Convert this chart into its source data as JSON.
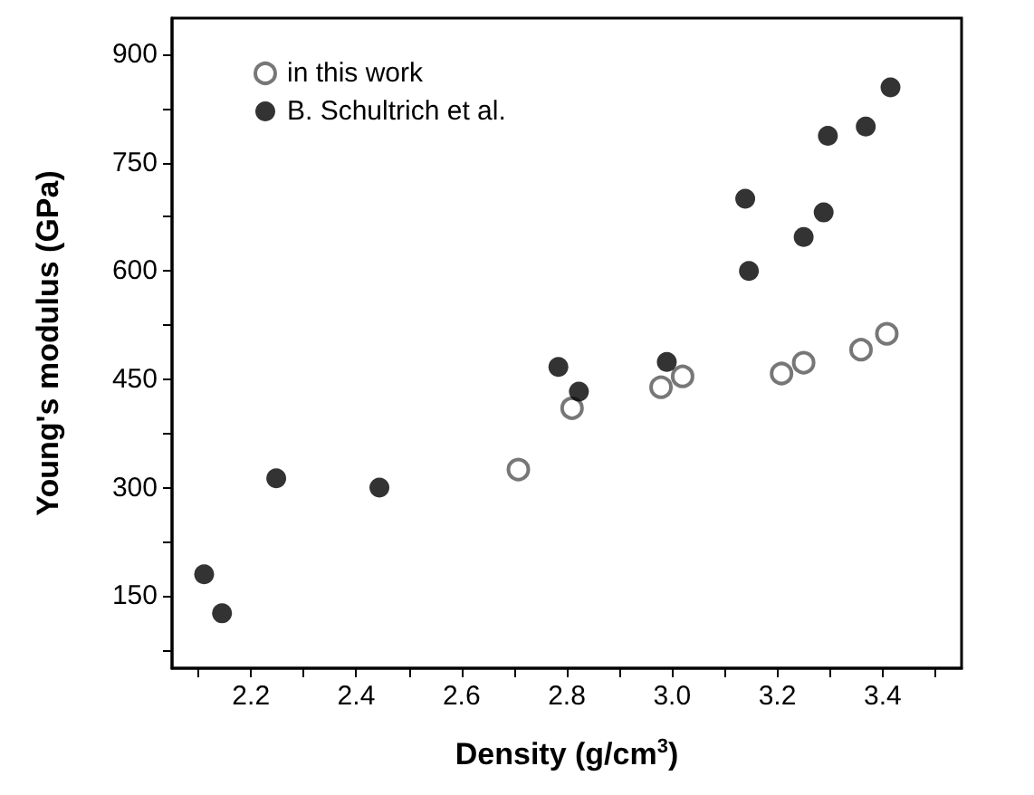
{
  "chart_data": {
    "type": "scatter",
    "xlabel": "Density (g/cm$^{3}$)",
    "ylabel": "Young's modulus (GPa)",
    "xlim": [
      2.05,
      3.55
    ],
    "ylim": [
      50,
      950
    ],
    "xticks": [
      {
        "value": 2.1,
        "label": null
      },
      2.2,
      {
        "value": 2.3,
        "label": null
      },
      2.4,
      {
        "value": 2.5,
        "label": null
      },
      2.6,
      {
        "value": 2.7,
        "label": null
      },
      2.8,
      {
        "value": 2.9,
        "label": null
      },
      "3.0",
      {
        "value": 3.1,
        "label": null
      },
      3.2,
      {
        "value": 3.3,
        "label": null
      },
      3.4,
      {
        "value": 3.5,
        "label": null
      }
    ],
    "yticks": [
      {
        "value": 75,
        "label": null
      },
      150,
      {
        "value": 225,
        "label": null
      },
      300,
      {
        "value": 375,
        "label": null
      },
      450,
      {
        "value": 525,
        "label": null
      },
      600,
      {
        "value": 675,
        "label": null
      },
      750,
      {
        "value": 825,
        "label": null
      },
      900
    ],
    "grid": false,
    "legend": "top left",
    "marker": "circle",
    "series": [
      {
        "name": "in this work",
        "color": "#555555",
        "marker": "empty circle",
        "x": [
          2.708,
          2.81,
          2.979,
          3.02,
          3.208,
          3.25,
          3.359,
          3.408
        ],
        "values": [
          325,
          410,
          439,
          454,
          458,
          473,
          491,
          513
        ]
      },
      {
        "name": "B. Schultrich et al.",
        "color": "#000000",
        "x": [
          2.111,
          2.145,
          2.248,
          2.444,
          2.784,
          2.823,
          2.99,
          3.139,
          3.146,
          3.25,
          3.288,
          3.296,
          3.368,
          3.415
        ],
        "values": [
          180,
          126,
          313,
          300,
          467,
          433,
          474,
          700,
          600,
          647,
          681,
          787,
          800,
          854
        ]
      }
    ]
  }
}
